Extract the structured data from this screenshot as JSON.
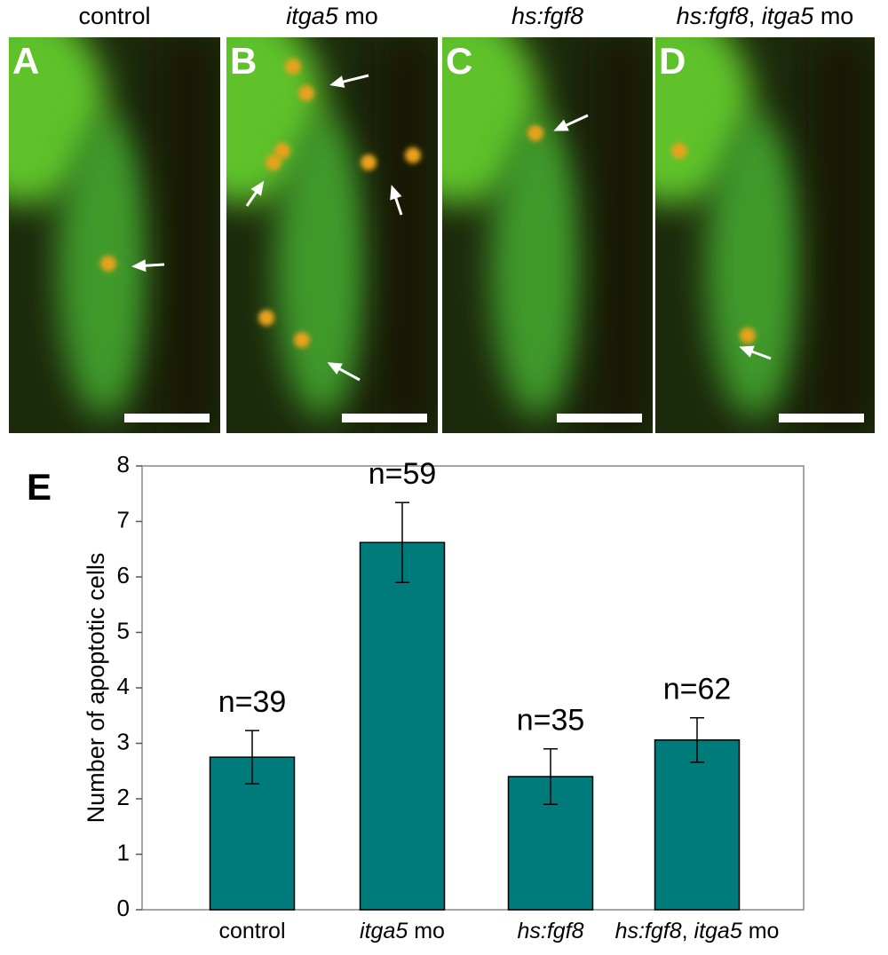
{
  "panels": [
    {
      "label": "A",
      "title": [
        {
          "text": "control",
          "italic": false
        }
      ]
    },
    {
      "label": "B",
      "title": [
        {
          "text": "itga5",
          "italic": true
        },
        {
          "text": " mo",
          "italic": false
        }
      ]
    },
    {
      "label": "C",
      "title": [
        {
          "text": "hs:fgf8",
          "italic": true
        }
      ]
    },
    {
      "label": "D",
      "title": [
        {
          "text": "hs:fgf8",
          "italic": true
        },
        {
          "text": ", ",
          "italic": false
        },
        {
          "text": "itga5",
          "italic": true
        },
        {
          "text": " mo",
          "italic": false
        }
      ]
    }
  ],
  "chart_data": {
    "type": "bar",
    "panel_label": "E",
    "ylabel": "Number of apoptotic cells",
    "categories": [
      [
        {
          "text": "control",
          "italic": false
        }
      ],
      [
        {
          "text": "itga5",
          "italic": true
        },
        {
          "text": " mo",
          "italic": false
        }
      ],
      [
        {
          "text": "hs:fgf8",
          "italic": true
        }
      ],
      [
        {
          "text": "hs:fgf8",
          "italic": true
        },
        {
          "text": ", ",
          "italic": false
        },
        {
          "text": "itga5",
          "italic": true
        },
        {
          "text": " mo",
          "italic": false
        }
      ]
    ],
    "values": [
      2.75,
      6.62,
      2.4,
      3.06
    ],
    "errors": [
      0.48,
      0.72,
      0.5,
      0.4
    ],
    "annotations": [
      "n=39",
      "n=59",
      "n=35",
      "n=62"
    ],
    "color": "#007b7b",
    "ylim": [
      0,
      8
    ],
    "yticks": [
      0,
      1,
      2,
      3,
      4,
      5,
      6,
      7,
      8
    ]
  }
}
